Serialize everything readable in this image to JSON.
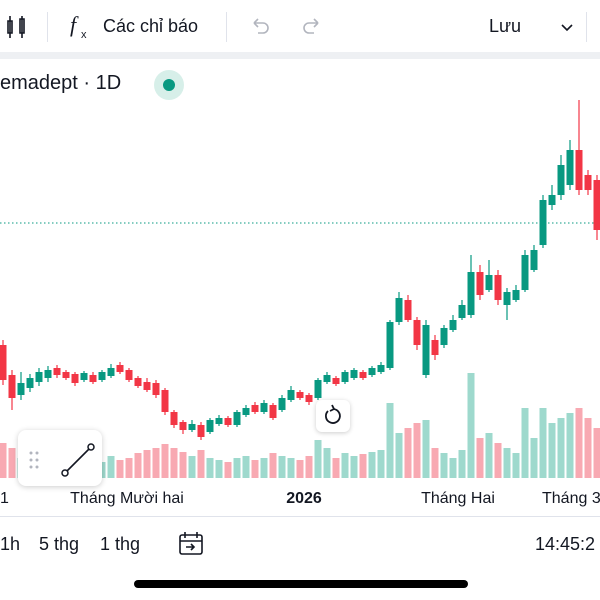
{
  "toolbar": {
    "indicators": "Các chỉ báo",
    "save": "Lưu"
  },
  "symbol": "emadept · 1D",
  "chart_data": {
    "type": "candlestick",
    "open": [
      115,
      85,
      65,
      72,
      78,
      82,
      92,
      88,
      86,
      80,
      85,
      80,
      84,
      95,
      90,
      82,
      78,
      77,
      70,
      48,
      38,
      30,
      35,
      28,
      36,
      42,
      35,
      45,
      55,
      48,
      55,
      50,
      60,
      68,
      65,
      62,
      78,
      82,
      78,
      82,
      88,
      85,
      88,
      92,
      138,
      160,
      140,
      85,
      120,
      115,
      130,
      142,
      145,
      188,
      170,
      185,
      155,
      160,
      170,
      190,
      215,
      255,
      265,
      275,
      310,
      285,
      280
    ],
    "high": [
      120,
      90,
      88,
      86,
      92,
      94,
      95,
      90,
      88,
      89,
      88,
      90,
      96,
      98,
      92,
      84,
      82,
      80,
      72,
      50,
      40,
      40,
      38,
      42,
      45,
      44,
      50,
      55,
      58,
      60,
      57,
      65,
      74,
      70,
      67,
      82,
      88,
      84,
      90,
      92,
      90,
      94,
      98,
      140,
      168,
      165,
      143,
      140,
      125,
      135,
      145,
      160,
      205,
      195,
      200,
      190,
      172,
      175,
      210,
      215,
      265,
      275,
      305,
      320,
      360,
      290,
      285
    ],
    "low": [
      75,
      50,
      60,
      68,
      74,
      78,
      82,
      80,
      74,
      78,
      76,
      78,
      82,
      86,
      78,
      72,
      68,
      62,
      45,
      32,
      26,
      28,
      20,
      26,
      34,
      33,
      33,
      43,
      46,
      46,
      40,
      48,
      58,
      60,
      55,
      60,
      76,
      74,
      76,
      80,
      80,
      83,
      86,
      90,
      135,
      138,
      110,
      82,
      100,
      112,
      128,
      140,
      142,
      160,
      168,
      155,
      140,
      158,
      168,
      188,
      212,
      250,
      260,
      270,
      265,
      265,
      220
    ],
    "close": [
      80,
      62,
      77,
      82,
      88,
      90,
      85,
      82,
      77,
      87,
      78,
      88,
      92,
      88,
      80,
      74,
      70,
      65,
      48,
      35,
      30,
      36,
      23,
      40,
      42,
      35,
      48,
      52,
      48,
      57,
      42,
      62,
      70,
      62,
      58,
      80,
      85,
      76,
      88,
      90,
      82,
      92,
      95,
      138,
      162,
      140,
      115,
      135,
      105,
      132,
      140,
      155,
      188,
      165,
      185,
      160,
      168,
      170,
      205,
      210,
      260,
      265,
      295,
      310,
      270,
      270,
      230
    ],
    "volume": [
      35,
      30,
      20,
      18,
      22,
      15,
      18,
      16,
      20,
      15,
      18,
      16,
      22,
      18,
      20,
      25,
      28,
      30,
      34,
      30,
      26,
      22,
      28,
      20,
      18,
      16,
      20,
      22,
      18,
      20,
      25,
      22,
      20,
      18,
      22,
      38,
      30,
      20,
      25,
      22,
      24,
      26,
      28,
      75,
      45,
      50,
      55,
      58,
      30,
      25,
      20,
      28,
      105,
      40,
      45,
      35,
      30,
      25,
      70,
      40,
      70,
      55,
      60,
      65,
      70,
      60,
      50
    ],
    "ylim": [
      0,
      380
    ],
    "volume_ylim": [
      0,
      140
    ],
    "reference_line": 237,
    "up_color": "#089981",
    "down_color": "#f23645",
    "up_volume_color": "#9ed9cd",
    "down_volume_color": "#f8a9b2",
    "x_labels": [
      "1",
      "Tháng Mười hai",
      "2026",
      "Tháng Hai",
      "Tháng 3"
    ]
  },
  "ranges": [
    "1h",
    "5 thg",
    "1 thg"
  ],
  "clock": "14:45:2"
}
